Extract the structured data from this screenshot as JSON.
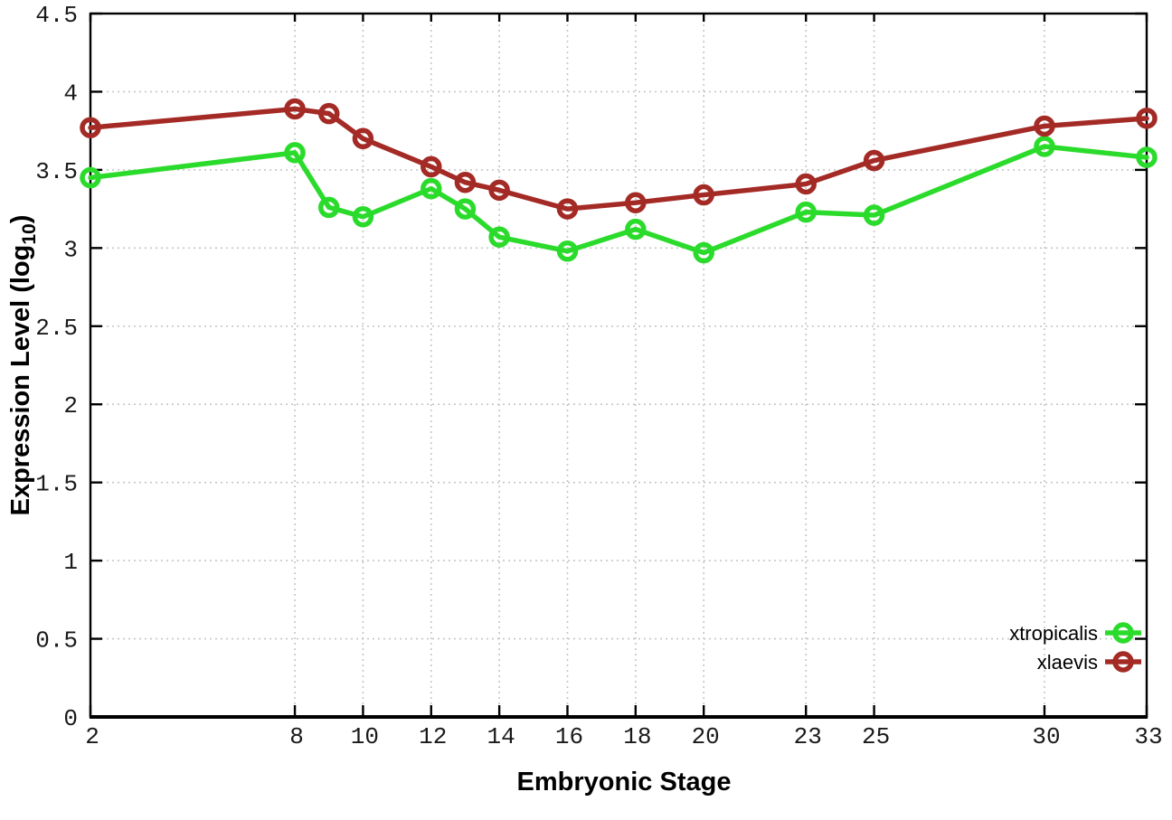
{
  "chart_data": {
    "type": "line",
    "title": "",
    "xlabel": "Embryonic Stage",
    "ylabel_main": "Expression Level (log",
    "ylabel_sub": "10",
    "ylabel_end": ")",
    "x": [
      2,
      8,
      9,
      10,
      12,
      13,
      14,
      16,
      18,
      20,
      23,
      25,
      30,
      33
    ],
    "series": [
      {
        "name": "xtropicalis",
        "color": "#2bdb2b",
        "values": [
          3.45,
          3.61,
          3.26,
          3.2,
          3.38,
          3.25,
          3.07,
          2.98,
          3.12,
          2.97,
          3.23,
          3.21,
          3.65,
          3.58
        ]
      },
      {
        "name": "xlaevis",
        "color": "#a42a25",
        "values": [
          3.77,
          3.89,
          3.86,
          3.7,
          3.52,
          3.42,
          3.37,
          3.25,
          3.29,
          3.34,
          3.41,
          3.56,
          3.78,
          3.83
        ]
      }
    ],
    "xlim": [
      2,
      33
    ],
    "ylim": [
      0,
      4.5
    ],
    "xticks": [
      2,
      8,
      10,
      12,
      14,
      16,
      18,
      20,
      23,
      25,
      30,
      33
    ],
    "xtick_labels": [
      "2",
      "8",
      "10",
      "12",
      "14",
      "16",
      "18",
      "20",
      "23",
      "25",
      "30",
      "33"
    ],
    "yticks": [
      0,
      0.5,
      1,
      1.5,
      2,
      2.5,
      3,
      3.5,
      4,
      4.5
    ],
    "ytick_labels": [
      "0",
      "0.5",
      "1",
      "1.5",
      "2",
      "2.5",
      "3",
      "3.5",
      "4",
      "4.5"
    ],
    "grid": true,
    "legend_position": "bottom-right",
    "legend_entries": [
      "xtropicalis",
      "xlaevis"
    ],
    "colors": {
      "border": "#000000",
      "grid": "#c6c6c6",
      "tick_text": "#1a1a1a"
    }
  }
}
